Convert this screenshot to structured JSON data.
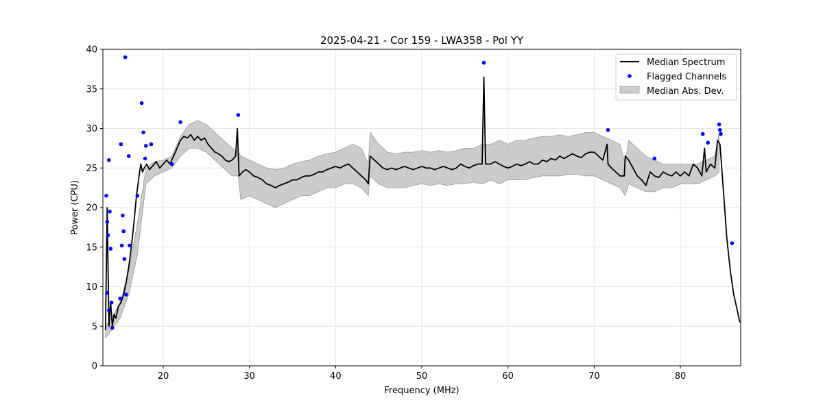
{
  "chart_data": {
    "type": "line",
    "title": "2025-04-21 - Cor 159 - LWA358 - Pol YY",
    "xlabel": "Frequency (MHz)",
    "ylabel": "Power (CPU)",
    "xlim": [
      13,
      87
    ],
    "ylim": [
      0,
      40
    ],
    "xticks": [
      20,
      30,
      40,
      50,
      60,
      70,
      80
    ],
    "yticks": [
      0,
      5,
      10,
      15,
      20,
      25,
      30,
      35,
      40
    ],
    "grid": true,
    "legend_position": "top-right",
    "colors": {
      "median": "#000000",
      "flagged": "#0000ff",
      "mad_fill": "#bfbfbf"
    },
    "series": [
      {
        "name": "Median Spectrum",
        "kind": "line",
        "x": [
          13.3,
          13.5,
          13.7,
          13.9,
          14.1,
          14.3,
          14.5,
          14.8,
          15.1,
          15.4,
          15.7,
          16.0,
          16.3,
          16.6,
          16.9,
          17.2,
          17.4,
          17.6,
          17.8,
          18.1,
          18.4,
          18.8,
          19.2,
          19.6,
          20.0,
          20.4,
          20.8,
          21.2,
          21.6,
          22.0,
          22.4,
          22.8,
          23.2,
          23.6,
          24.0,
          24.4,
          24.8,
          25.2,
          25.6,
          26.0,
          26.4,
          26.8,
          27.2,
          27.6,
          28.0,
          28.4,
          28.6,
          28.8,
          29.2,
          29.6,
          30.0,
          30.5,
          31.0,
          31.5,
          32.0,
          32.5,
          33.0,
          33.5,
          34.0,
          34.5,
          35.0,
          35.5,
          36.0,
          36.5,
          37.0,
          37.5,
          38.0,
          38.5,
          39.0,
          39.5,
          40.0,
          40.5,
          41.0,
          41.5,
          42.0,
          42.5,
          43.0,
          43.5,
          43.8,
          44.0,
          44.5,
          45.0,
          45.5,
          46.0,
          46.5,
          47.0,
          47.5,
          48.0,
          48.5,
          49.0,
          49.5,
          50.0,
          50.5,
          51.0,
          51.5,
          52.0,
          52.5,
          53.0,
          53.5,
          54.0,
          54.5,
          55.0,
          55.5,
          56.0,
          56.5,
          57.0,
          57.2,
          57.4,
          58.0,
          58.5,
          59.0,
          59.5,
          60.0,
          60.5,
          61.0,
          61.5,
          62.0,
          62.5,
          63.0,
          63.5,
          64.0,
          64.5,
          65.0,
          65.5,
          66.0,
          66.5,
          67.0,
          67.5,
          68.0,
          68.5,
          69.0,
          69.5,
          70.0,
          70.5,
          71.0,
          71.5,
          71.6,
          72.0,
          72.5,
          73.0,
          73.5,
          73.6,
          74.0,
          74.5,
          75.0,
          75.5,
          76.0,
          76.5,
          77.0,
          77.5,
          78.0,
          78.5,
          79.0,
          79.5,
          80.0,
          80.5,
          81.0,
          81.5,
          82.0,
          82.5,
          82.8,
          83.0,
          83.5,
          84.0,
          84.3,
          84.6,
          85.0,
          85.4,
          85.8,
          86.2,
          86.6,
          86.9
        ],
        "y": [
          4.5,
          20.0,
          5.0,
          8.0,
          5.0,
          6.5,
          6.0,
          7.5,
          8.0,
          9.0,
          10.5,
          12.5,
          15.0,
          18.0,
          21.5,
          24.0,
          25.5,
          24.5,
          25.0,
          25.5,
          24.8,
          25.3,
          25.8,
          25.0,
          25.5,
          26.0,
          25.5,
          26.5,
          27.5,
          28.5,
          29.0,
          28.8,
          29.2,
          28.5,
          29.0,
          28.5,
          28.8,
          28.0,
          27.5,
          27.0,
          26.8,
          26.5,
          26.0,
          25.8,
          26.0,
          26.5,
          30.0,
          24.0,
          24.5,
          24.8,
          24.5,
          24.0,
          23.8,
          23.5,
          23.0,
          22.8,
          22.5,
          22.8,
          23.0,
          23.2,
          23.5,
          23.5,
          23.8,
          24.0,
          24.0,
          24.2,
          24.5,
          24.5,
          24.8,
          25.0,
          25.2,
          25.0,
          25.3,
          25.5,
          25.0,
          24.5,
          24.0,
          23.5,
          23.0,
          26.5,
          26.0,
          25.5,
          25.0,
          24.8,
          25.0,
          24.8,
          25.0,
          25.2,
          25.0,
          24.8,
          25.0,
          25.2,
          25.0,
          25.0,
          24.8,
          25.0,
          25.2,
          25.0,
          24.8,
          25.0,
          25.5,
          25.2,
          25.0,
          25.3,
          25.5,
          25.5,
          36.5,
          25.5,
          25.5,
          25.8,
          25.5,
          25.2,
          25.0,
          25.2,
          25.5,
          25.3,
          25.5,
          25.8,
          25.5,
          25.5,
          26.0,
          25.8,
          26.2,
          26.0,
          26.5,
          26.2,
          26.5,
          26.8,
          26.5,
          26.3,
          26.8,
          27.0,
          27.0,
          26.5,
          26.0,
          28.0,
          25.5,
          25.0,
          24.5,
          24.0,
          24.0,
          26.5,
          26.0,
          25.0,
          24.0,
          23.5,
          22.8,
          24.5,
          24.0,
          23.8,
          24.5,
          24.2,
          24.0,
          24.5,
          24.0,
          24.5,
          24.0,
          25.5,
          25.0,
          24.0,
          27.5,
          24.5,
          25.5,
          25.0,
          28.5,
          28.0,
          22.0,
          16.0,
          12.0,
          9.0,
          7.0,
          5.5
        ]
      },
      {
        "name": "Flagged Channels",
        "kind": "scatter",
        "x": [
          13.4,
          13.5,
          13.6,
          13.7,
          13.8,
          13.9,
          14.0,
          14.1,
          13.5,
          13.7,
          15.0,
          15.1,
          15.2,
          15.3,
          15.4,
          15.5,
          15.6,
          15.7,
          16.0,
          16.1,
          17.0,
          17.5,
          17.7,
          17.9,
          18.0,
          18.6,
          21.0,
          22.0,
          28.7,
          57.2,
          71.6,
          77.0,
          82.6,
          83.2,
          84.5,
          84.6,
          84.7,
          86.0
        ],
        "y": [
          21.5,
          18.2,
          16.5,
          26.0,
          19.5,
          14.8,
          8.0,
          4.8,
          9.2,
          7.0,
          8.5,
          28.0,
          15.2,
          19.0,
          17.0,
          13.5,
          39.0,
          9.0,
          26.5,
          15.2,
          21.5,
          33.2,
          29.5,
          26.2,
          27.8,
          28.0,
          25.5,
          30.8,
          31.7,
          38.3,
          29.8,
          26.2,
          29.3,
          28.2,
          30.5,
          29.8,
          29.3,
          15.5
        ]
      },
      {
        "name": "Median Abs. Dev.",
        "kind": "band",
        "x": [
          13.3,
          14.0,
          15.0,
          16.0,
          17.0,
          18.0,
          19.0,
          20.0,
          21.0,
          22.0,
          23.0,
          24.0,
          25.0,
          26.0,
          27.0,
          28.0,
          28.7,
          29.0,
          30.0,
          31.0,
          32.0,
          33.0,
          34.0,
          35.0,
          36.0,
          37.0,
          38.0,
          39.0,
          40.0,
          41.0,
          42.0,
          43.0,
          43.8,
          44.0,
          45.0,
          46.0,
          47.0,
          48.0,
          49.0,
          50.0,
          51.0,
          52.0,
          53.0,
          54.0,
          55.0,
          56.0,
          57.0,
          58.0,
          59.0,
          60.0,
          61.0,
          62.0,
          63.0,
          64.0,
          65.0,
          66.0,
          67.0,
          68.0,
          69.0,
          70.0,
          71.0,
          72.0,
          73.0,
          73.6,
          74.0,
          75.0,
          76.0,
          77.0,
          78.0,
          79.0,
          80.0,
          81.0,
          82.0,
          83.0,
          84.0,
          84.5
        ],
        "upper": [
          5.0,
          6.0,
          8.0,
          12.0,
          18.0,
          25.0,
          25.8,
          26.0,
          26.5,
          29.0,
          30.5,
          31.0,
          30.5,
          29.5,
          28.5,
          27.5,
          27.0,
          26.5,
          26.0,
          25.5,
          25.0,
          24.8,
          25.0,
          25.5,
          25.8,
          26.0,
          26.5,
          26.8,
          27.0,
          27.5,
          28.0,
          27.5,
          25.5,
          29.5,
          28.0,
          27.0,
          26.8,
          27.0,
          27.0,
          27.2,
          27.0,
          27.2,
          27.0,
          27.2,
          27.5,
          27.5,
          28.0,
          28.0,
          28.5,
          28.0,
          28.5,
          28.5,
          28.8,
          29.0,
          29.0,
          29.2,
          29.0,
          29.2,
          29.5,
          29.5,
          29.0,
          28.5,
          28.0,
          25.5,
          28.5,
          27.5,
          26.5,
          26.0,
          25.5,
          25.5,
          25.5,
          25.5,
          25.5,
          26.0,
          26.5,
          29.5
        ],
        "lower": [
          3.5,
          4.5,
          6.0,
          9.0,
          14.0,
          23.0,
          24.0,
          24.5,
          25.0,
          26.5,
          27.5,
          27.5,
          27.0,
          26.0,
          25.0,
          24.0,
          24.0,
          21.0,
          21.5,
          21.0,
          20.5,
          20.0,
          20.5,
          21.0,
          21.5,
          21.5,
          22.0,
          22.5,
          22.5,
          23.0,
          23.0,
          22.5,
          21.5,
          24.0,
          23.0,
          22.5,
          22.5,
          22.5,
          22.8,
          23.0,
          22.8,
          23.0,
          22.8,
          23.0,
          23.0,
          23.2,
          23.0,
          23.5,
          23.0,
          23.5,
          23.5,
          23.5,
          23.8,
          24.0,
          24.0,
          24.0,
          24.2,
          24.2,
          24.0,
          24.0,
          23.5,
          23.0,
          22.5,
          21.5,
          23.0,
          22.5,
          22.0,
          22.0,
          22.5,
          22.5,
          23.0,
          23.0,
          23.0,
          23.5,
          24.0,
          24.5
        ]
      }
    ]
  }
}
